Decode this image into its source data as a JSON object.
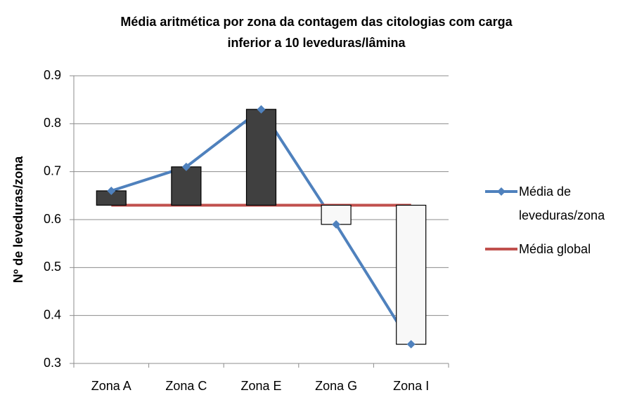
{
  "chart_data": {
    "type": "line",
    "title": [
      "Média aritmética por zona da contagem das citologias com carga",
      "inferior a 10 leveduras/lâmina"
    ],
    "y_label": "Nº de leveduras/zona",
    "categories": [
      "Zona A",
      "Zona C",
      "Zona E",
      "Zona G",
      "Zona I"
    ],
    "series": [
      {
        "name": "Média de leveduras/zona",
        "color": "#4f81bd",
        "marker": "diamond",
        "values": [
          0.66,
          0.71,
          0.83,
          0.59,
          0.34
        ]
      },
      {
        "name": "Média global",
        "color": "#c0504d",
        "values": [
          0.63,
          0.63,
          0.63,
          0.63,
          0.63
        ]
      }
    ],
    "updown_bars": {
      "up_color": "#404040",
      "down_color": "#f8f8f8"
    },
    "ylim": [
      0.3,
      0.9
    ],
    "yticks": [
      0.3,
      0.4,
      0.5,
      0.6,
      0.7,
      0.8,
      0.9
    ],
    "grid": true,
    "legend": "right"
  }
}
